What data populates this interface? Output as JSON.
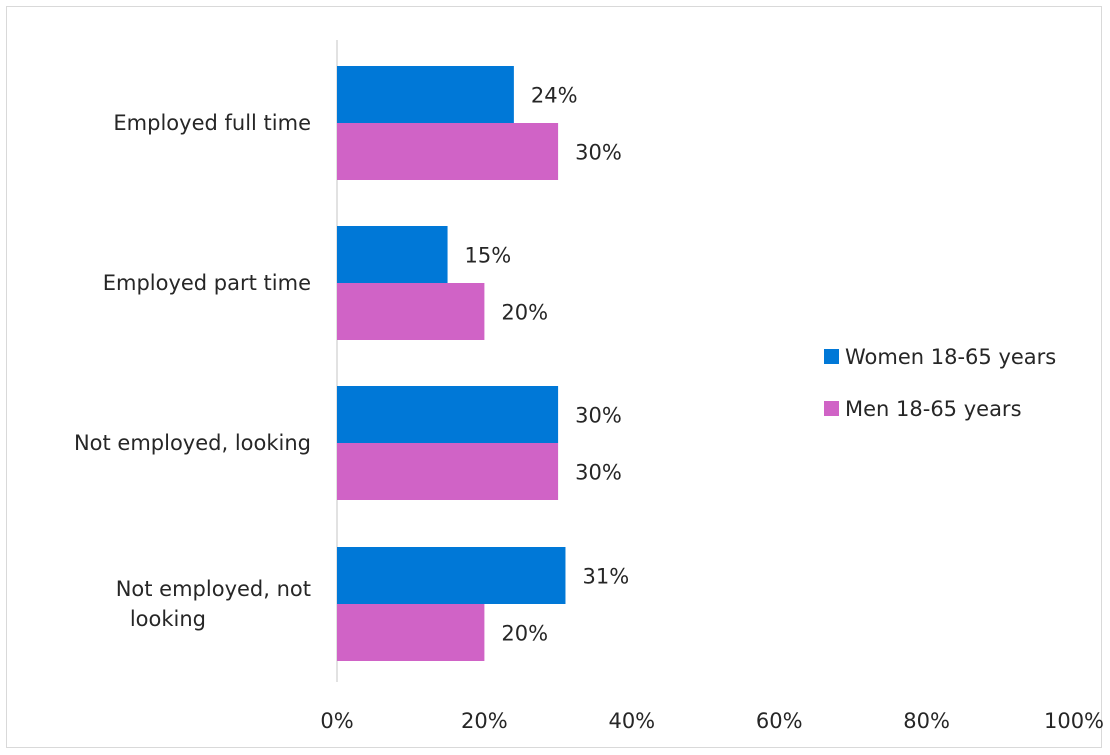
{
  "chart_data": {
    "type": "bar",
    "orientation": "horizontal",
    "categories": [
      "Employed full time",
      "Employed part time",
      "Not employed, looking",
      "Not employed, not looking"
    ],
    "series": [
      {
        "name": "Women 18-65 years",
        "values": [
          24,
          15,
          30,
          31
        ],
        "color": "#0078d7"
      },
      {
        "name": "Men 18-65 years",
        "values": [
          30,
          20,
          30,
          20
        ],
        "color": "#d063c6"
      }
    ],
    "data_labels": [
      [
        "24%",
        "15%",
        "30%",
        "31%"
      ],
      [
        "30%",
        "20%",
        "30%",
        "20%"
      ]
    ],
    "x_ticks": [
      "0%",
      "20%",
      "40%",
      "60%",
      "80%",
      "100%"
    ],
    "xlim": [
      0,
      100
    ],
    "grid": false,
    "legend": "right",
    "title": "",
    "xlabel": "",
    "ylabel": ""
  }
}
